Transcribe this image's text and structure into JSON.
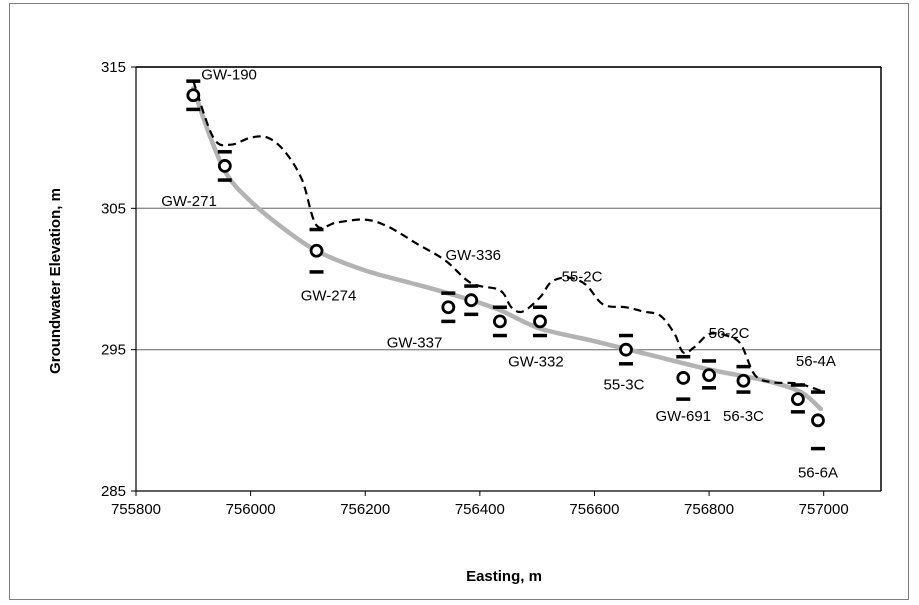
{
  "chart_data": {
    "type": "scatter",
    "xlabel": "Easting, m",
    "ylabel": "Groundwater Elevation, m",
    "xlim": [
      755800,
      757100
    ],
    "ylim": [
      285,
      315
    ],
    "x_ticks": [
      "755800",
      "756000",
      "756200",
      "756400",
      "756600",
      "756800",
      "757000"
    ],
    "y_ticks": [
      "285",
      "295",
      "305",
      "315"
    ],
    "grid": "horizontal",
    "colors": {
      "fit_curve": "#b3b3b3",
      "dashed_curve": "#000000",
      "markers": "#000000"
    },
    "wells": [
      {
        "name": "GW-190",
        "x": 755900,
        "y": 313.0,
        "low": 312.0,
        "high": 314.0
      },
      {
        "name": "GW-271",
        "x": 755955,
        "y": 308.0,
        "low": 307.0,
        "high": 309.0
      },
      {
        "name": "GW-274",
        "x": 756115,
        "y": 302.0,
        "low": 300.5,
        "high": 303.5
      },
      {
        "name": "GW-337",
        "x": 756345,
        "y": 298.0,
        "low": 297.0,
        "high": 299.0
      },
      {
        "name": "GW-336",
        "x": 756385,
        "y": 298.5,
        "low": 297.5,
        "high": 299.5
      },
      {
        "name": "GW-332",
        "x": 756435,
        "y": 297.0,
        "low": 296.0,
        "high": 298.0
      },
      {
        "name": "55-2C",
        "x": 756505,
        "y": 297.0,
        "low": 296.0,
        "high": 298.0
      },
      {
        "name": "55-3C",
        "x": 756655,
        "y": 295.0,
        "low": 294.0,
        "high": 296.0
      },
      {
        "name": "GW-691",
        "x": 756755,
        "y": 293.0,
        "low": 291.5,
        "high": 294.5
      },
      {
        "name": "56-2C",
        "x": 756800,
        "y": 293.2,
        "low": 292.3,
        "high": 294.2
      },
      {
        "name": "56-3C",
        "x": 756860,
        "y": 292.8,
        "low": 292.0,
        "high": 293.8
      },
      {
        "name": "56-4A",
        "x": 756955,
        "y": 291.5,
        "low": 290.6,
        "high": 292.5
      },
      {
        "name": "56-6A",
        "x": 756990,
        "y": 290.0,
        "low": 288.0,
        "high": 292.0
      }
    ],
    "fit_curve": [
      [
        755900,
        313.5
      ],
      [
        755930,
        310.0
      ],
      [
        755960,
        307.3
      ],
      [
        756000,
        305.5
      ],
      [
        756050,
        303.8
      ],
      [
        756115,
        302.0
      ],
      [
        756200,
        300.6
      ],
      [
        756300,
        299.5
      ],
      [
        756385,
        298.5
      ],
      [
        756435,
        297.8
      ],
      [
        756505,
        296.5
      ],
      [
        756600,
        295.6
      ],
      [
        756700,
        294.6
      ],
      [
        756800,
        293.6
      ],
      [
        756900,
        292.8
      ],
      [
        756960,
        292.0
      ],
      [
        756995,
        290.8
      ]
    ],
    "dashed_curve": [
      [
        755900,
        314.0
      ],
      [
        755935,
        310.0
      ],
      [
        755965,
        309.5
      ],
      [
        756000,
        310.0
      ],
      [
        756030,
        310.0
      ],
      [
        756060,
        309.0
      ],
      [
        756090,
        307.0
      ],
      [
        756115,
        303.8
      ],
      [
        756150,
        304.0
      ],
      [
        756200,
        304.2
      ],
      [
        756240,
        303.7
      ],
      [
        756290,
        302.5
      ],
      [
        756340,
        301.3
      ],
      [
        756385,
        299.7
      ],
      [
        756435,
        299.2
      ],
      [
        756455,
        298.0
      ],
      [
        756475,
        297.7
      ],
      [
        756505,
        298.7
      ],
      [
        756525,
        299.8
      ],
      [
        756555,
        300.1
      ],
      [
        756585,
        299.6
      ],
      [
        756615,
        298.2
      ],
      [
        756655,
        298.0
      ],
      [
        756685,
        297.7
      ],
      [
        756715,
        297.4
      ],
      [
        756740,
        296.1
      ],
      [
        756755,
        294.8
      ],
      [
        756775,
        295.2
      ],
      [
        756800,
        296.1
      ],
      [
        756830,
        296.0
      ],
      [
        756855,
        295.4
      ],
      [
        756880,
        293.2
      ],
      [
        756910,
        292.7
      ],
      [
        756955,
        292.6
      ],
      [
        756995,
        292.1
      ]
    ]
  }
}
